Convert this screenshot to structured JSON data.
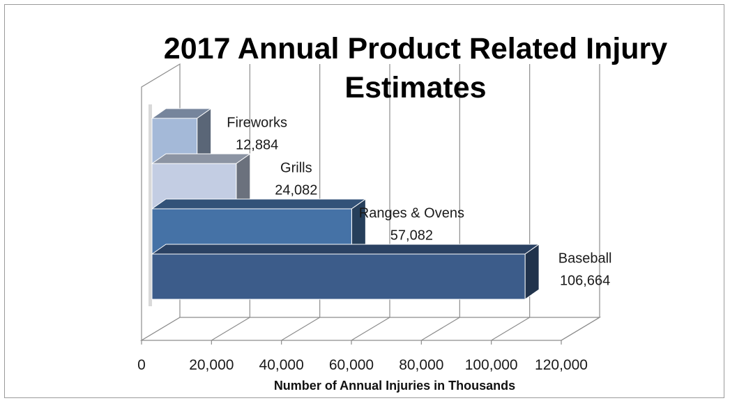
{
  "chart_data": {
    "type": "bar",
    "orientation": "horizontal",
    "title_lines": [
      "2017 Annual Product Related Injury",
      "Estimates"
    ],
    "xlabel": "Number of Annual Injuries in Thousands",
    "categories": [
      "Baseball",
      "Ranges & Ovens",
      "Grills",
      "Fireworks"
    ],
    "values": [
      106664,
      57082,
      24082,
      12884
    ],
    "value_labels": [
      "106,664",
      "57,082",
      "24,082",
      "12,884"
    ],
    "xlim": [
      0,
      120000
    ],
    "xticks": [
      0,
      20000,
      40000,
      60000,
      80000,
      100000,
      120000
    ],
    "xtick_labels": [
      "0",
      "20,000",
      "40,000",
      "60,000",
      "80,000",
      "100,000",
      "120,000"
    ],
    "grid": true,
    "legend": "none",
    "colors": [
      "#3c5c8a",
      "#4572a6",
      "#c3cde3",
      "#a4b9d8"
    ]
  }
}
